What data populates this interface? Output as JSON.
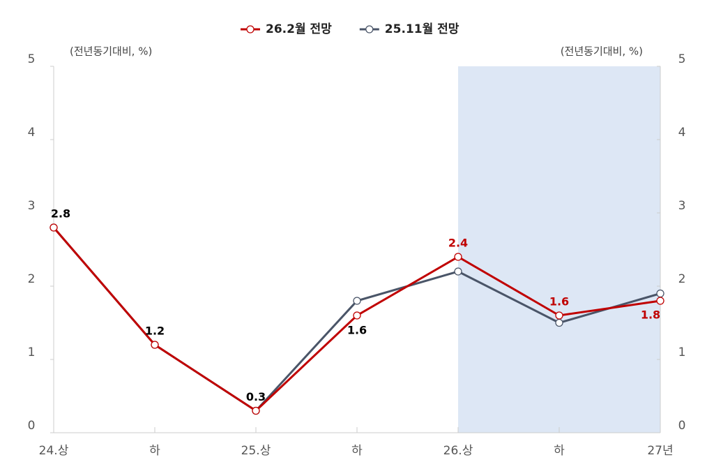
{
  "chart_data": {
    "type": "line",
    "ylabel": "(전년동기대비, %)",
    "y2label": "(전년동기대비, %)",
    "categories": [
      "24.상",
      "하",
      "25.상",
      "하",
      "26.상",
      "하",
      "27년"
    ],
    "series": [
      {
        "name": "26.2월 전망",
        "color": "#c00000",
        "values": [
          2.8,
          1.2,
          0.3,
          1.6,
          2.4,
          1.6,
          1.8
        ],
        "label_colors": [
          "#000000",
          "#000000",
          "#000000",
          "#000000",
          "#c00000",
          "#c00000",
          "#c00000"
        ]
      },
      {
        "name": "25.11월 전망",
        "color": "#4a5568",
        "values": [
          2.8,
          1.2,
          0.3,
          1.8,
          2.2,
          1.5,
          1.9
        ]
      }
    ],
    "ylim": [
      0,
      5
    ],
    "yticks": [
      0,
      1,
      2,
      3,
      4,
      5
    ],
    "y2lim": [
      0,
      5
    ],
    "y2ticks": [
      0,
      1,
      2,
      3,
      4,
      5
    ],
    "highlight": {
      "from": "26.상",
      "to": "27년",
      "color": "#dde7f5"
    },
    "legend": "top"
  }
}
